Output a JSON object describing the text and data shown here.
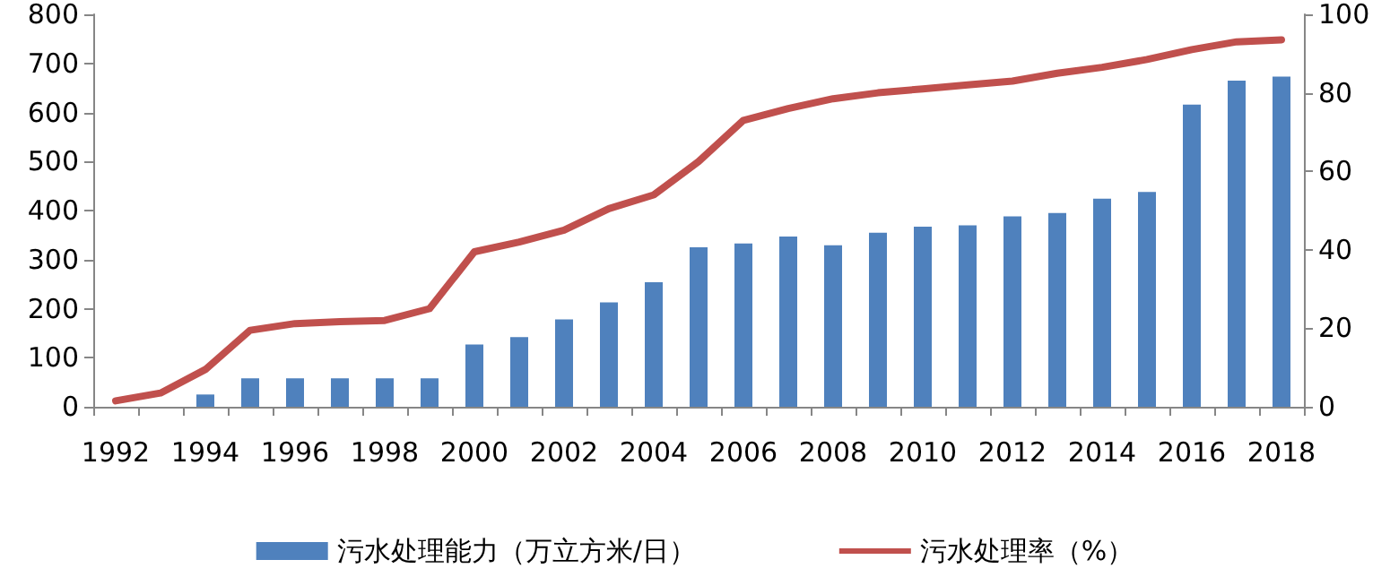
{
  "chart_data": {
    "type": "bar",
    "categories": [
      "1992",
      null,
      "1994",
      null,
      "1996",
      null,
      "1998",
      null,
      "2000",
      null,
      "2002",
      null,
      "2004",
      null,
      "2006",
      null,
      "2008",
      null,
      "2010",
      null,
      "2012",
      null,
      "2014",
      null,
      "2016",
      null,
      "2018"
    ],
    "series": [
      {
        "name": "污水处理能力（万立方米/日）",
        "color": "#4f81bd",
        "values": [
          null,
          null,
          25,
          58,
          58,
          58,
          58,
          58,
          127,
          142,
          178,
          213,
          254,
          325,
          333,
          347,
          329,
          355,
          367,
          370,
          388,
          395,
          424,
          438,
          616,
          665,
          673
        ]
      },
      {
        "name": "污水处理率（%）",
        "type": "line",
        "axis": "y2",
        "color": "#c0504d",
        "values": [
          1.5,
          3.5,
          9.5,
          19.5,
          21.2,
          21.7,
          22,
          25,
          39.5,
          42,
          45,
          50.5,
          54,
          62.5,
          73,
          76,
          78.5,
          80,
          81,
          82,
          83,
          85,
          86.5,
          88.5,
          91,
          93,
          93.5
        ]
      }
    ],
    "ylim": [
      0,
      800
    ],
    "yticks": [
      0,
      100,
      200,
      300,
      400,
      500,
      600,
      700,
      800
    ],
    "y2lim": [
      0,
      100
    ],
    "y2ticks": [
      0,
      20,
      40,
      60,
      80,
      100
    ],
    "grid": false,
    "legend": "bottom",
    "marker": "none",
    "line_style": "solid"
  }
}
